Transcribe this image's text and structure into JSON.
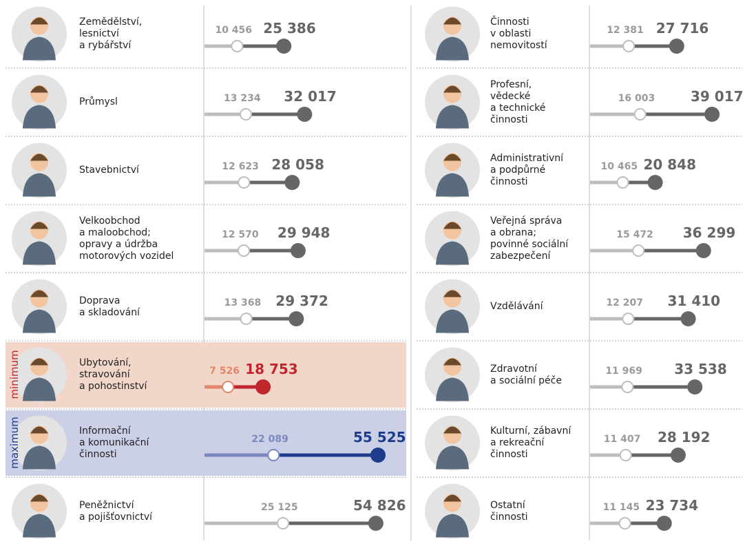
{
  "chart_data": {
    "type": "dumbbell",
    "categories": [
      "Zemědělství,\nlesnictví\na rybářství",
      "Průmysl",
      "Stavebnictví",
      "Velkoobchod\na maloobchod;\nopravy a údržba\nmotorových vozidel",
      "Doprava\na skladování",
      "Ubytování,\nstravování\na pohostinství",
      "Informační\na komunikační\nčinnosti",
      "Peněžnictví\na pojišťovnictví",
      "Činnosti\nv oblasti\nnemovitostí",
      "Profesní,\nvědecké\na technické\nčinnosti",
      "Administrativní\na podpůrné\nčinnosti",
      "Veřejná správa\na obrana;\npovinné sociální\nzabezpečení",
      "Vzdělávání",
      "Zdravotní\na sociální péče",
      "Kulturní, zábavní\na rekreační\nčinnosti",
      "Ostatní\nčinnosti"
    ],
    "series": [
      {
        "color": "#bdbdbd",
        "values": [
          10456,
          13234,
          12623,
          12570,
          13368,
          7526,
          22089,
          25125,
          12381,
          16003,
          10465,
          15472,
          12207,
          11969,
          11407,
          11145
        ],
        "value_labels": [
          "10 456",
          "13 234",
          "12 623",
          "12 570",
          "13 368",
          "7 526",
          "22 089",
          "25 125",
          "12 381",
          "16 003",
          "10 465",
          "15 472",
          "12 207",
          "11 969",
          "11 407",
          "11 145"
        ]
      },
      {
        "color": "#666666",
        "values": [
          25386,
          32017,
          28058,
          29948,
          29372,
          18753,
          55525,
          54826,
          27716,
          39017,
          20848,
          36299,
          31410,
          33538,
          28192,
          23734
        ],
        "value_labels": [
          "25 386",
          "32 017",
          "28 058",
          "29 948",
          "29 372",
          "18 753",
          "55 525",
          "54 826",
          "27 716",
          "39 017",
          "20 848",
          "36 299",
          "31 410",
          "33 538",
          "28 192",
          "23 734"
        ]
      }
    ],
    "minimum_label": "minimum",
    "minimum_color": "#c0272d",
    "minimum_light": "#e0876a",
    "minimum_bg": "#f3d6ca",
    "maximum_label": "maximum",
    "maximum_color": "#1e3c8c",
    "maximum_light": "#7b88bf",
    "maximum_bg": "#ccd0e7"
  }
}
